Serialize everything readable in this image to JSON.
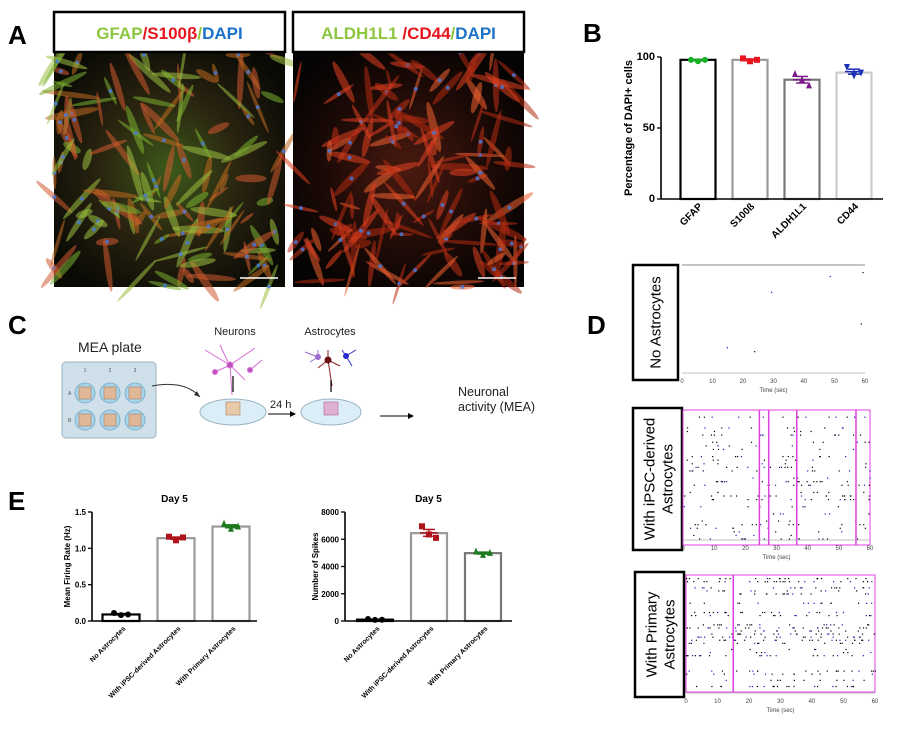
{
  "panel_labels": {
    "a": "A",
    "b": "B",
    "c": "C",
    "d": "D",
    "e": "E"
  },
  "panel_a": {
    "images": [
      {
        "header": [
          {
            "text": "GFAP",
            "color": "#8dc63f"
          },
          {
            "text": "/S100β",
            "color": "#e8141e"
          },
          {
            "text": "/",
            "color": "#8dc63f"
          },
          {
            "text": "DAPI",
            "color": "#1a73c8"
          }
        ]
      },
      {
        "header": [
          {
            "text": "ALDH1L1 ",
            "color": "#8dc63f"
          },
          {
            "text": "/CD44",
            "color": "#e8141e"
          },
          {
            "text": "/",
            "color": "#8dc63f"
          },
          {
            "text": "DAPI",
            "color": "#1a73c8"
          }
        ]
      }
    ]
  },
  "panel_c": {
    "plate_label": "MEA plate",
    "columns": [
      "1",
      "2",
      "3"
    ],
    "rows": [
      "A",
      "B"
    ],
    "neurons_label": "Neurons",
    "astrocytes_label": "Astrocytes",
    "time_label": "24 h",
    "readout_label_1": "Neuronal",
    "readout_label_2": "activity (MEA)"
  },
  "panel_d": {
    "xlabel": "Time (sec)",
    "xticks": [
      "0",
      "10",
      "20",
      "30",
      "40",
      "50",
      "60"
    ],
    "conditions": [
      {
        "label_1": "No Astrocytes",
        "label_2": ""
      },
      {
        "label_1": "With iPSC-derived",
        "label_2": "Astrocytes"
      },
      {
        "label_1": "With Primary",
        "label_2": "Astrocytes"
      }
    ]
  },
  "chart_data": [
    {
      "id": "B",
      "type": "bar",
      "title": "",
      "ylabel": "Percentage of DAPI+ cells",
      "ylim": [
        0,
        100
      ],
      "yticks": [
        "0",
        "50",
        "100"
      ],
      "categories": [
        "GFAP",
        "S100ß",
        "ALDH1L1",
        "CD44"
      ],
      "values": [
        98,
        98,
        84,
        89
      ],
      "points": [
        [
          98,
          97,
          98
        ],
        [
          99,
          97,
          98
        ],
        [
          88,
          84,
          80
        ],
        [
          93,
          87,
          89
        ]
      ],
      "bar_colors": [
        "#000000",
        "#999999",
        "#777777",
        "#cccccc"
      ],
      "point_colors": [
        "#17b324",
        "#e8141e",
        "#7b1a8c",
        "#1a2fb8"
      ],
      "point_markers": [
        "circle",
        "square",
        "triangle",
        "triangle-down"
      ]
    },
    {
      "id": "E1",
      "type": "bar",
      "title": "Day 5",
      "ylabel": "Mean Firing Rate (Hz)",
      "ylim": [
        0,
        1.5
      ],
      "yticks": [
        "0.0",
        "0.5",
        "1.0",
        "1.5"
      ],
      "categories": [
        "No Astrocytes",
        "With iPSC-derived Astrocytes",
        "With Primary Astrocytes"
      ],
      "values": [
        0.09,
        1.14,
        1.3
      ],
      "points": [
        [
          0.11,
          0.08,
          0.09
        ],
        [
          1.16,
          1.11,
          1.15
        ],
        [
          1.34,
          1.27,
          1.3
        ]
      ],
      "bar_colors": [
        "#000000",
        "#999999",
        "#999999"
      ],
      "point_colors": [
        "#000000",
        "#b0121b",
        "#1f7a1f"
      ],
      "point_markers": [
        "circle",
        "square",
        "triangle"
      ]
    },
    {
      "id": "E2",
      "type": "bar",
      "title": "Day 5",
      "ylabel": "Number of Spikes",
      "ylim": [
        0,
        8000
      ],
      "yticks": [
        "0",
        "2000",
        "4000",
        "6000",
        "8000"
      ],
      "categories": [
        "No Astrocytes",
        "With iPSC-derived Astrocytes",
        "With Primary Astrocytes"
      ],
      "values": [
        100,
        6450,
        4980
      ],
      "points": [
        [
          150,
          80,
          90
        ],
        [
          6950,
          6350,
          6100
        ],
        [
          5100,
          4850,
          5000
        ]
      ],
      "bar_colors": [
        "#000000",
        "#999999",
        "#777777"
      ],
      "point_colors": [
        "#000000",
        "#b0121b",
        "#1f7a1f"
      ],
      "point_markers": [
        "circle",
        "square",
        "triangle"
      ]
    },
    {
      "id": "D",
      "type": "scatter",
      "xlabel": "Time (sec)",
      "xlim": [
        0,
        60
      ],
      "burst_lines_sec": [
        [],
        [
          24.5,
          27.5,
          36.5,
          55.5
        ],
        [
          15
        ]
      ],
      "burst_color": "#e040e0",
      "spike_colors": [
        "#000000",
        "#1a1ab8"
      ]
    }
  ]
}
